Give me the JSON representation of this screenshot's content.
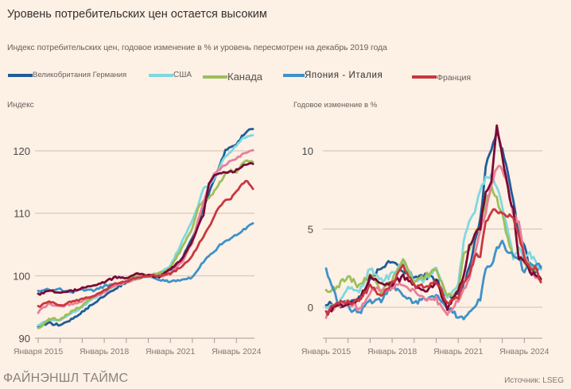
{
  "title": "Уровень потребительских цен остается высоким",
  "subtitle": "Индекс потребительских цен, годовое изменение в % и уровень пересмотрен на декабрь 2019 года",
  "legend": [
    {
      "label": "Великобритания Германия",
      "color": "#1f5c99"
    },
    {
      "label": "США",
      "color": "#7fd8e0"
    },
    {
      "label": "Канада",
      "color": "#9dbf5a"
    },
    {
      "label": "Япония - Италия",
      "color": "#3d92c9"
    },
    {
      "label": "Франция",
      "color": "#c8383f"
    }
  ],
  "footer": {
    "brand": "ФАЙНЭНШЛ ТАЙМС",
    "source": "Источник: LSEG"
  },
  "chart_data": [
    {
      "type": "line",
      "title": "Индекс",
      "ylabel": "Индекс",
      "ylim": [
        90,
        125
      ],
      "yticks": [
        90,
        100,
        110,
        120
      ],
      "xlim": [
        2014.85,
        2024.8
      ],
      "xticks": [
        2015,
        2016,
        2017,
        2018,
        2019,
        2020,
        2021,
        2022,
        2023,
        2024
      ],
      "xticklabels": [
        {
          "x": 2015,
          "label": "Января 2015"
        },
        {
          "x": 2018,
          "label": "Январь 2018"
        },
        {
          "x": 2021,
          "label": "Январь 2021"
        },
        {
          "x": 2024,
          "label": "Январь 2024"
        }
      ],
      "grid": true,
      "x": [
        2015.0,
        2015.5,
        2016.0,
        2016.5,
        2017.0,
        2017.5,
        2018.0,
        2018.5,
        2019.0,
        2019.5,
        2020.0,
        2020.5,
        2021.0,
        2021.5,
        2022.0,
        2022.25,
        2022.5,
        2022.75,
        2023.0,
        2023.25,
        2023.5,
        2023.75,
        2024.0,
        2024.25,
        2024.5,
        2024.75
      ],
      "series": [
        {
          "name": "Великобритания",
          "color": "#1f5c99",
          "values": [
            92.0,
            92.4,
            92.1,
            93.0,
            94.2,
            95.6,
            96.8,
            98.0,
            98.9,
            99.6,
            100.0,
            100.3,
            100.8,
            102.6,
            106.0,
            108.4,
            111.0,
            113.2,
            115.5,
            117.6,
            120.1,
            120.7,
            121.0,
            122.3,
            123.2,
            123.5
          ]
        },
        {
          "name": "США",
          "color": "#7fd8e0",
          "values": [
            92.0,
            93.0,
            93.0,
            94.0,
            95.0,
            96.4,
            97.3,
            98.6,
            99.0,
            99.6,
            100.0,
            100.5,
            101.5,
            105.2,
            108.8,
            111.2,
            114.0,
            114.5,
            115.7,
            117.5,
            119.1,
            119.8,
            120.9,
            121.8,
            122.2,
            122.5
          ]
        },
        {
          "name": "Канада",
          "color": "#9dbf5a",
          "values": [
            91.5,
            93.1,
            93.0,
            94.2,
            95.2,
            96.6,
            97.6,
            98.3,
            99.0,
            100.2,
            100.0,
            100.4,
            101.2,
            104.3,
            107.7,
            110.8,
            112.0,
            112.5,
            113.5,
            114.9,
            116.3,
            116.8,
            116.6,
            117.8,
            118.5,
            118.2
          ]
        },
        {
          "name": "Япония",
          "color": "#3d92c9",
          "values": [
            97.5,
            97.8,
            97.8,
            97.3,
            97.8,
            97.6,
            98.3,
            98.8,
            99.0,
            99.6,
            100.0,
            99.4,
            99.0,
            99.3,
            99.8,
            101.0,
            102.2,
            103.1,
            103.8,
            104.9,
            105.6,
            106.0,
            106.5,
            107.2,
            107.8,
            108.4
          ]
        },
        {
          "name": "Италия",
          "color": "#e87f9a",
          "values": [
            94.2,
            95.6,
            95.0,
            95.5,
            96.0,
            96.7,
            97.3,
            98.5,
            98.9,
            99.4,
            100.0,
            99.8,
            100.5,
            102.0,
            105.3,
            108.7,
            111.5,
            114.5,
            116.5,
            117.0,
            117.8,
            118.4,
            118.8,
            119.4,
            119.7,
            120.1
          ]
        },
        {
          "name": "Германия",
          "color": "#7a0a35",
          "values": [
            97.0,
            97.6,
            97.3,
            97.5,
            98.0,
            98.4,
            98.9,
            99.8,
            99.7,
            100.4,
            100.0,
            99.8,
            101.0,
            102.5,
            105.5,
            107.8,
            109.8,
            114.8,
            116.0,
            116.4,
            116.5,
            116.6,
            116.9,
            117.4,
            118.0,
            117.9
          ]
        },
        {
          "name": "Франция",
          "color": "#c8383f",
          "values": [
            95.0,
            95.9,
            95.2,
            95.8,
            96.3,
            96.8,
            97.6,
            98.7,
            99.1,
            99.7,
            100.0,
            99.9,
            100.3,
            101.4,
            103.1,
            104.9,
            106.3,
            107.7,
            109.6,
            111.2,
            112.0,
            112.4,
            113.4,
            114.6,
            115.2,
            113.9
          ]
        }
      ]
    },
    {
      "type": "line",
      "title": "Годовое изменение в %",
      "ylabel": "Годовое изменение в %",
      "ylim": [
        -2,
        12
      ],
      "yticks": [
        0,
        5,
        10
      ],
      "xlim": [
        2014.85,
        2024.8
      ],
      "xticks": [
        2015,
        2016,
        2017,
        2018,
        2019,
        2020,
        2021,
        2022,
        2023,
        2024
      ],
      "xticklabels": [
        {
          "x": 2015,
          "label": "Январь 2015"
        },
        {
          "x": 2018,
          "label": "Январь 2018"
        },
        {
          "x": 2021,
          "label": "Январь 2021"
        },
        {
          "x": 2024,
          "label": "Январь 2024"
        }
      ],
      "grid": true,
      "x": [
        2015.0,
        2015.5,
        2016.0,
        2016.5,
        2017.0,
        2017.5,
        2018.0,
        2018.5,
        2019.0,
        2019.5,
        2020.0,
        2020.5,
        2021.0,
        2021.25,
        2021.5,
        2021.75,
        2022.0,
        2022.25,
        2022.5,
        2022.75,
        2023.0,
        2023.25,
        2023.5,
        2023.75,
        2024.0,
        2024.25,
        2024.5,
        2024.75
      ],
      "series": [
        {
          "name": "Великобритания",
          "color": "#1f5c99",
          "values": [
            0.3,
            0.1,
            0.3,
            0.6,
            1.8,
            2.6,
            3.0,
            2.4,
            1.9,
            2.0,
            1.8,
            0.6,
            0.7,
            1.5,
            2.5,
            4.2,
            5.5,
            9.0,
            10.1,
            11.1,
            10.1,
            8.7,
            6.8,
            4.6,
            4.0,
            2.3,
            2.2,
            2.6
          ]
        },
        {
          "name": "США",
          "color": "#7fd8e0",
          "values": [
            -0.1,
            0.2,
            1.4,
            1.0,
            2.5,
            1.7,
            2.1,
            2.9,
            1.6,
            1.8,
            2.5,
            0.6,
            1.4,
            4.2,
            5.4,
            6.2,
            7.5,
            8.3,
            8.5,
            7.7,
            6.4,
            4.9,
            3.2,
            3.7,
            3.1,
            3.4,
            2.9,
            2.4
          ]
        },
        {
          "name": "Канада",
          "color": "#9dbf5a",
          "values": [
            1.0,
            1.3,
            2.0,
            1.3,
            2.1,
            1.0,
            1.7,
            3.0,
            1.5,
            2.0,
            2.4,
            0.7,
            1.0,
            3.4,
            3.7,
            4.7,
            5.1,
            6.8,
            7.6,
            6.9,
            5.9,
            4.3,
            3.3,
            3.1,
            2.9,
            2.7,
            2.5,
            1.6
          ]
        },
        {
          "name": "Япония",
          "color": "#3d92c9",
          "values": [
            2.4,
            0.4,
            0.0,
            -0.4,
            0.4,
            0.4,
            1.4,
            0.9,
            0.2,
            0.6,
            0.7,
            0.1,
            -0.7,
            -0.8,
            -0.3,
            0.1,
            0.5,
            2.4,
            2.6,
            3.7,
            4.3,
            3.5,
            3.3,
            3.2,
            2.2,
            2.8,
            2.8,
            2.5
          ]
        },
        {
          "name": "Италия",
          "color": "#e87f9a",
          "values": [
            -0.5,
            0.2,
            0.3,
            -0.1,
            1.0,
            1.2,
            1.2,
            1.5,
            1.0,
            0.4,
            0.5,
            -0.4,
            0.4,
            1.1,
            1.9,
            3.3,
            4.8,
            6.0,
            7.9,
            8.9,
            8.9,
            7.7,
            6.0,
            5.4,
            3.2,
            2.5,
            1.9,
            1.7
          ]
        },
        {
          "name": "Германия",
          "color": "#7a0a35",
          "values": [
            -0.4,
            0.1,
            0.2,
            0.4,
            1.9,
            1.5,
            1.4,
            2.0,
            1.5,
            1.0,
            1.6,
            -0.1,
            1.0,
            2.0,
            3.8,
            4.6,
            5.1,
            7.4,
            7.9,
            11.6,
            9.6,
            7.6,
            6.2,
            3.0,
            3.1,
            2.2,
            2.0,
            1.8
          ]
        },
        {
          "name": "Франция",
          "color": "#c8383f",
          "values": [
            -0.4,
            0.3,
            0.3,
            0.4,
            1.4,
            0.8,
            1.5,
            2.6,
            1.4,
            1.3,
            1.7,
            0.2,
            0.6,
            1.6,
            1.9,
            3.4,
            3.3,
            5.4,
            6.1,
            6.2,
            5.9,
            5.9,
            5.6,
            4.5,
            3.2,
            2.5,
            2.5,
            1.6
          ]
        }
      ]
    }
  ]
}
